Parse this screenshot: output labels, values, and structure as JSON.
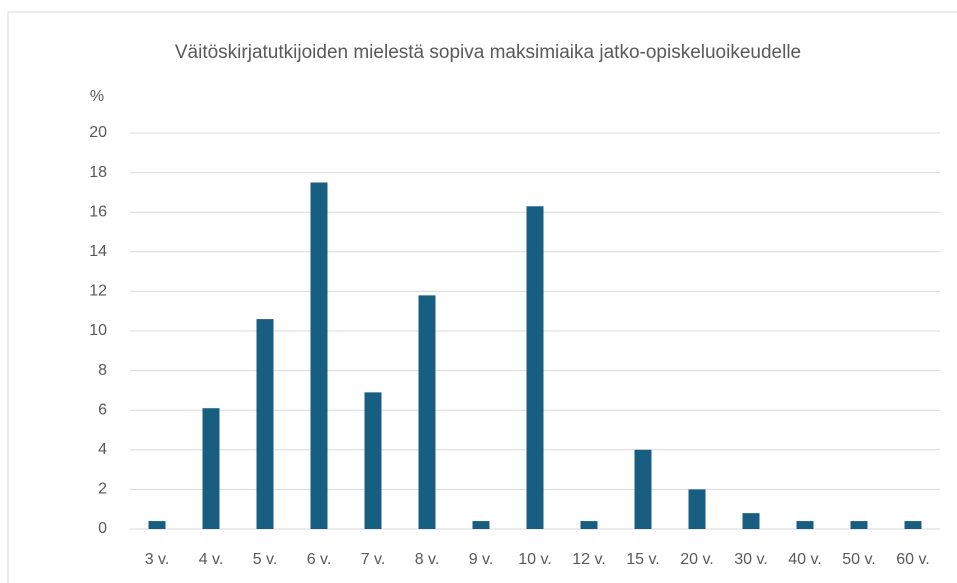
{
  "chart_data": {
    "type": "bar",
    "title": "Väitöskirjatutkijoiden mielestä sopiva maksimiaika jatko-opiskeluoikeudelle",
    "y_label": "%",
    "categories": [
      "3 v.",
      "4 v.",
      "5 v.",
      "6 v.",
      "7 v.",
      "8 v.",
      "9 v.",
      "10 v.",
      "12 v.",
      "15 v.",
      "20 v.",
      "30 v.",
      "40 v.",
      "50 v.",
      "60 v."
    ],
    "values": [
      0.4,
      6.1,
      10.6,
      17.5,
      6.9,
      11.8,
      0.4,
      16.3,
      0.4,
      4.0,
      2.0,
      0.8,
      0.4,
      0.4,
      0.4
    ],
    "color": "#175e81",
    "ylim": [
      0,
      20
    ],
    "yticks": [
      0,
      2,
      4,
      6,
      8,
      10,
      12,
      14,
      16,
      18,
      20
    ],
    "grid": true
  }
}
